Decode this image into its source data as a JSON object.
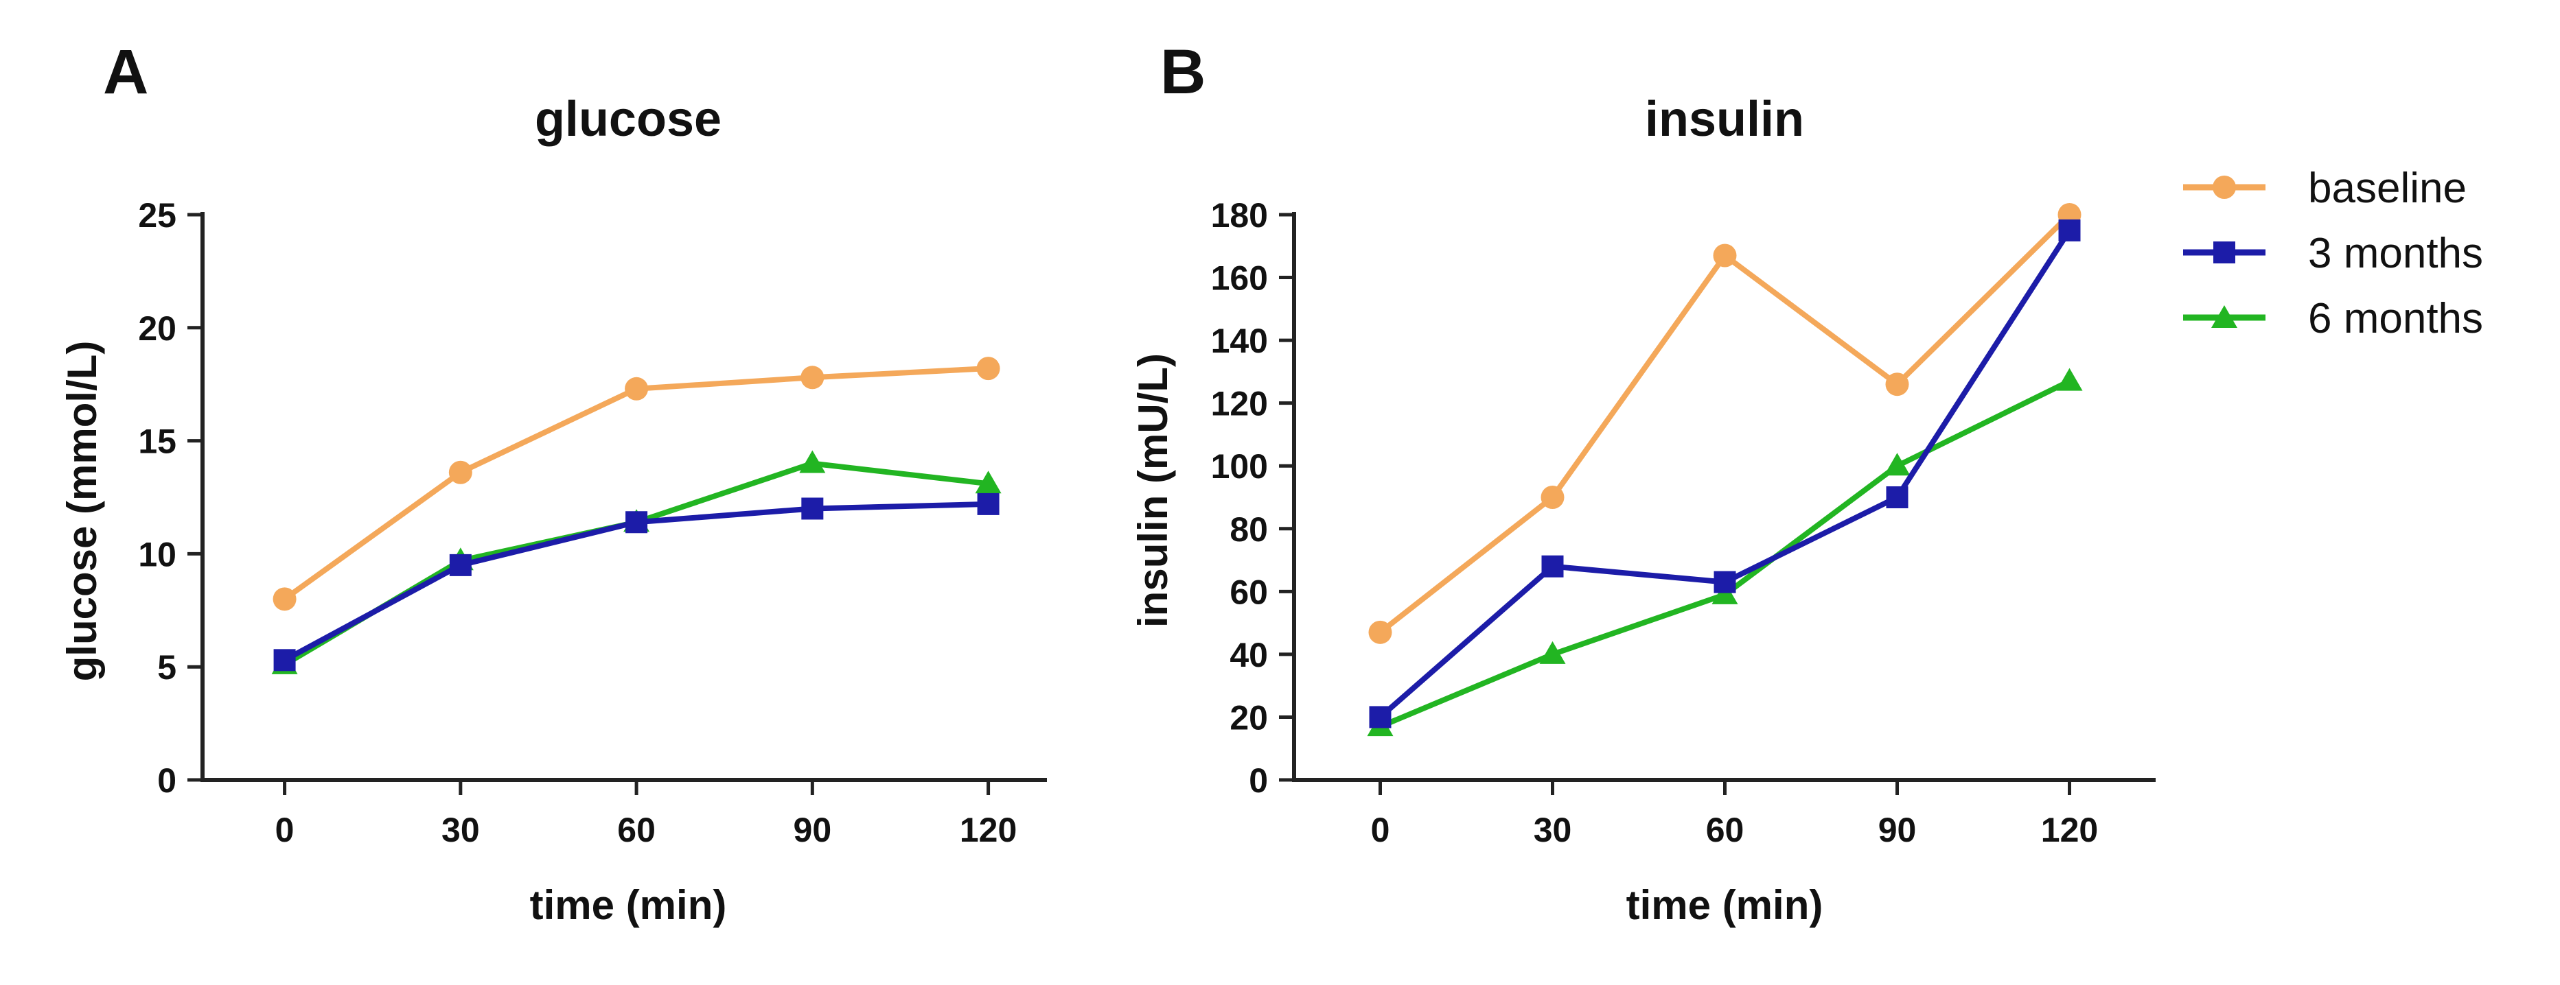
{
  "chart_data": [
    {
      "type": "line",
      "panel": "A",
      "title": "glucose",
      "xlabel": "time (min)",
      "ylabel": "glucose (mmol/L)",
      "x": [
        0,
        30,
        60,
        90,
        120
      ],
      "x_ticks": [
        0,
        30,
        60,
        90,
        120
      ],
      "y_ticks": [
        0,
        5,
        10,
        15,
        20,
        25
      ],
      "xlim": [
        -14,
        130
      ],
      "ylim": [
        0,
        25
      ],
      "grid": false,
      "series": [
        {
          "name": "baseline",
          "color": "#F4A85A",
          "marker": "circle",
          "values": [
            8.0,
            13.6,
            17.3,
            17.8,
            18.2
          ]
        },
        {
          "name": "6 months",
          "color": "#22B522",
          "marker": "triangle",
          "values": [
            5.1,
            9.7,
            11.4,
            14.0,
            13.1
          ]
        },
        {
          "name": "3 months",
          "color": "#1C1CA8",
          "marker": "square",
          "values": [
            5.3,
            9.5,
            11.4,
            12.0,
            12.2
          ]
        }
      ]
    },
    {
      "type": "line",
      "panel": "B",
      "title": "insulin",
      "xlabel": "time (min)",
      "ylabel": "insulin (mU/L)",
      "x": [
        0,
        30,
        60,
        90,
        120
      ],
      "x_ticks": [
        0,
        30,
        60,
        90,
        120
      ],
      "y_ticks": [
        0,
        20,
        40,
        60,
        80,
        100,
        120,
        140,
        160,
        180
      ],
      "xlim": [
        -15,
        135
      ],
      "ylim": [
        0,
        180
      ],
      "grid": false,
      "series": [
        {
          "name": "baseline",
          "color": "#F4A85A",
          "marker": "circle",
          "values": [
            47,
            90,
            167,
            126,
            180
          ]
        },
        {
          "name": "6 months",
          "color": "#22B522",
          "marker": "triangle",
          "values": [
            17,
            40,
            59,
            100,
            127
          ]
        },
        {
          "name": "3 months",
          "color": "#1C1CA8",
          "marker": "square",
          "values": [
            20,
            68,
            63,
            90,
            175
          ]
        }
      ]
    }
  ],
  "legend": {
    "position": "top-right",
    "items": [
      {
        "label": "baseline",
        "color": "#F4A85A",
        "marker": "circle"
      },
      {
        "label": "3 months",
        "color": "#1C1CA8",
        "marker": "square"
      },
      {
        "label": "6 months",
        "color": "#22B522",
        "marker": "triangle"
      }
    ]
  }
}
